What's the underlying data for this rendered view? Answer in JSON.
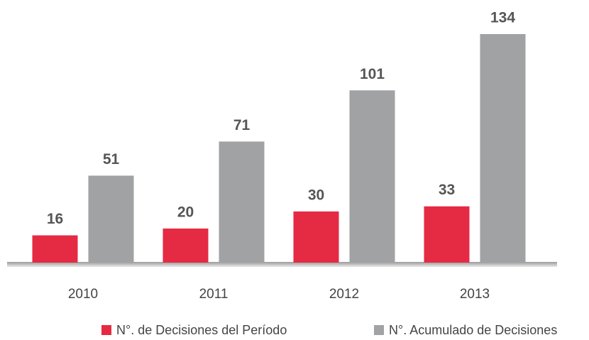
{
  "chart_data": {
    "type": "bar",
    "categories": [
      "2010",
      "2011",
      "2012",
      "2013"
    ],
    "series": [
      {
        "name": "N°. de Decisiones del Período",
        "color": "#e52a43",
        "values": [
          16,
          20,
          30,
          33
        ]
      },
      {
        "name": "N°. Acumulado de Decisiones",
        "color": "#a0a2a3",
        "values": [
          51,
          71,
          101,
          134
        ]
      }
    ]
  }
}
